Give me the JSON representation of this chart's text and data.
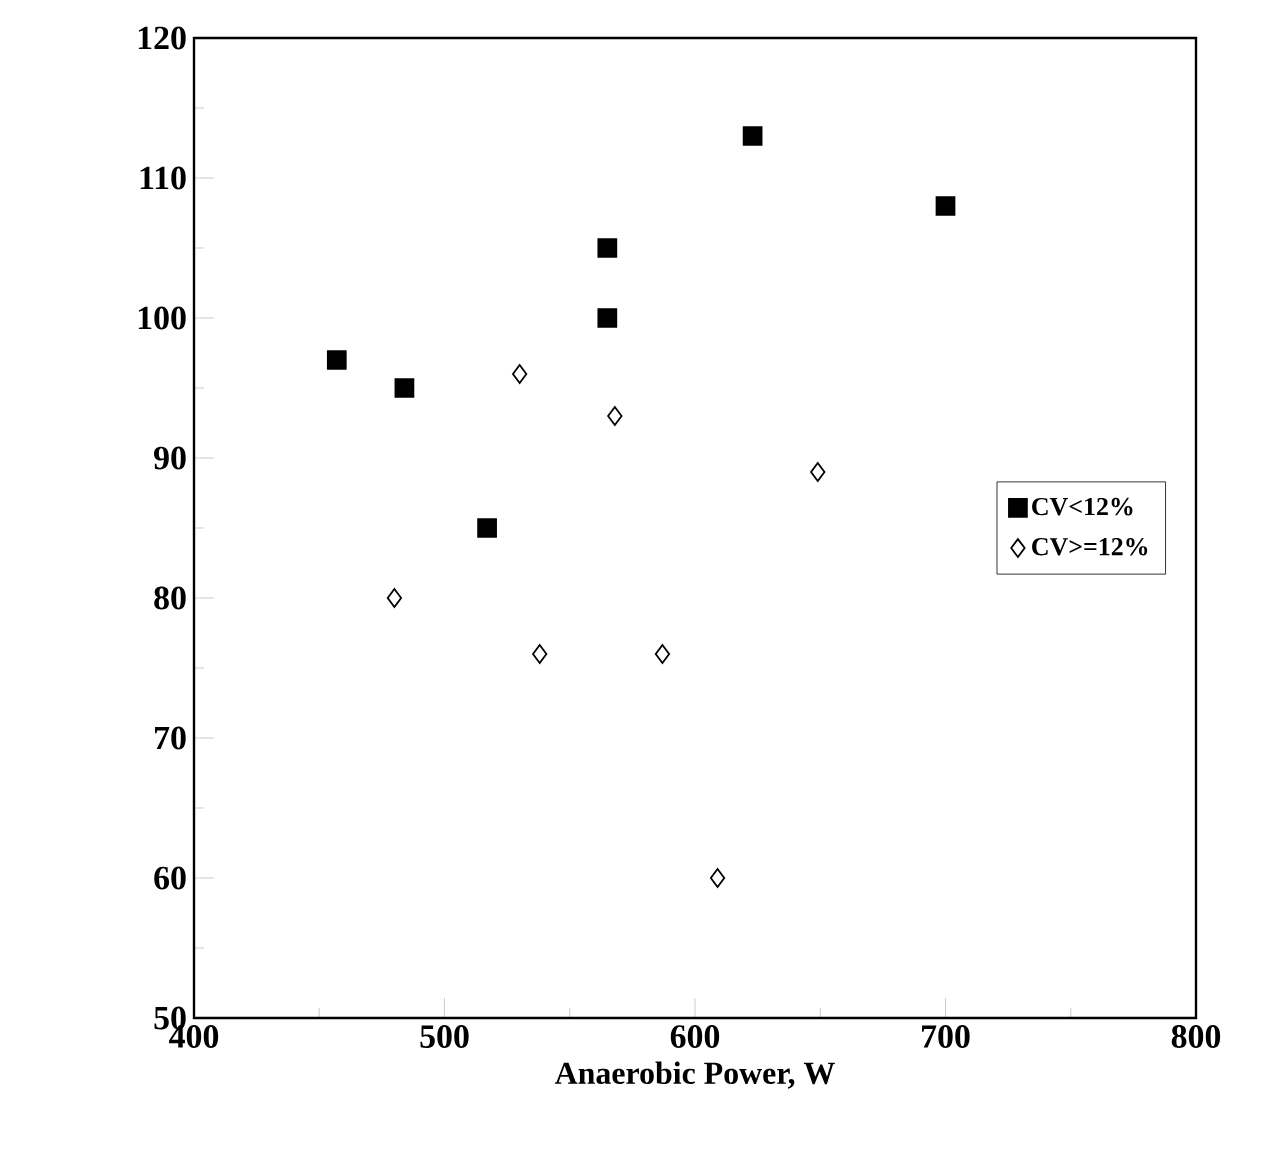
{
  "chart_data": {
    "type": "scatter",
    "xlabel": "Anaerobic Power, W",
    "xlim": [
      400,
      800
    ],
    "xticks": [
      400,
      500,
      600,
      700,
      800
    ],
    "ylim": [
      50,
      120
    ],
    "yticks": [
      50,
      60,
      70,
      80,
      90,
      100,
      110,
      120
    ],
    "legend": "right",
    "grid": false,
    "series": [
      {
        "name": "CV<12%",
        "color": "#000000",
        "marker": "square",
        "x": [
          457,
          484,
          517,
          565,
          565,
          623,
          700
        ],
        "values": [
          97,
          95,
          85,
          105,
          100,
          113,
          108
        ]
      },
      {
        "name": "CV>=12%",
        "color": "#000000",
        "marker": "diamond",
        "x": [
          530,
          568,
          480,
          538,
          587,
          609,
          649
        ],
        "values": [
          96,
          93,
          80,
          76,
          76,
          60,
          89
        ]
      }
    ]
  }
}
